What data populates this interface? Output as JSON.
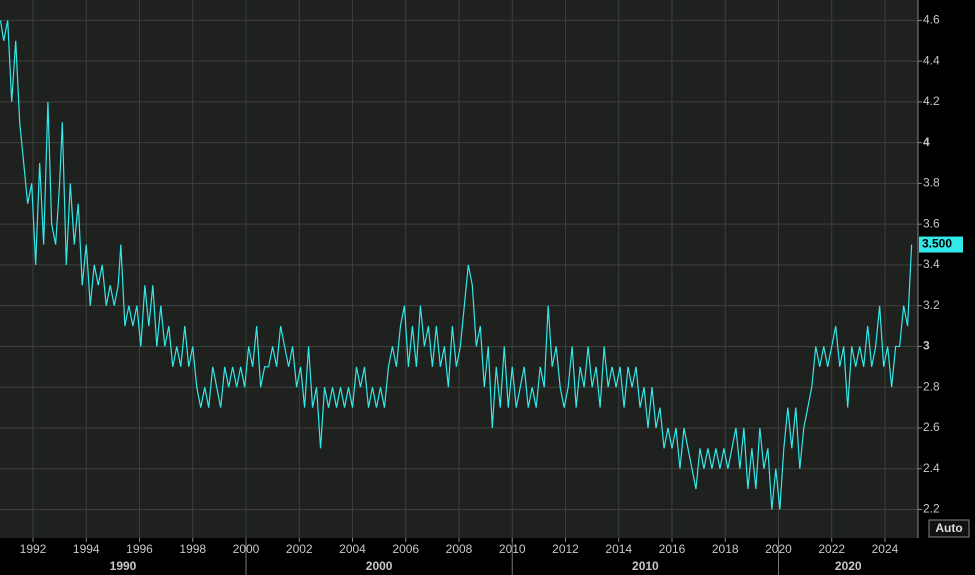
{
  "chart_data": {
    "type": "line",
    "x": [
      1990.78,
      1990.9,
      1991.05,
      1991.2,
      1991.35,
      1991.5,
      1991.65,
      1991.8,
      1991.95,
      1992.1,
      1992.25,
      1992.4,
      1992.56,
      1992.7,
      1992.85,
      1993.0,
      1993.1,
      1993.25,
      1993.4,
      1993.55,
      1993.7,
      1993.85,
      1994.0,
      1994.15,
      1994.3,
      1994.45,
      1994.6,
      1994.75,
      1994.9,
      1995.05,
      1995.2,
      1995.3,
      1995.45,
      1995.6,
      1995.75,
      1995.9,
      1996.05,
      1996.2,
      1996.35,
      1996.5,
      1996.65,
      1996.8,
      1996.95,
      1997.1,
      1997.25,
      1997.4,
      1997.55,
      1997.7,
      1997.85,
      1998.0,
      1998.15,
      1998.3,
      1998.45,
      1998.6,
      1998.75,
      1998.9,
      1999.05,
      1999.2,
      1999.35,
      1999.5,
      1999.65,
      1999.8,
      1999.95,
      2000.1,
      2000.25,
      2000.4,
      2000.55,
      2000.7,
      2000.85,
      2001.0,
      2001.15,
      2001.3,
      2001.45,
      2001.6,
      2001.75,
      2001.9,
      2002.05,
      2002.2,
      2002.35,
      2002.5,
      2002.65,
      2002.8,
      2002.95,
      2003.1,
      2003.25,
      2003.4,
      2003.55,
      2003.7,
      2003.85,
      2004.0,
      2004.15,
      2004.3,
      2004.45,
      2004.6,
      2004.75,
      2004.9,
      2005.05,
      2005.2,
      2005.35,
      2005.5,
      2005.65,
      2005.8,
      2005.95,
      2006.1,
      2006.25,
      2006.4,
      2006.55,
      2006.7,
      2006.85,
      2007.0,
      2007.15,
      2007.3,
      2007.45,
      2007.6,
      2007.75,
      2007.9,
      2008.05,
      2008.2,
      2008.35,
      2008.5,
      2008.65,
      2008.8,
      2008.95,
      2009.1,
      2009.25,
      2009.4,
      2009.55,
      2009.7,
      2009.85,
      2010.0,
      2010.15,
      2010.3,
      2010.45,
      2010.6,
      2010.75,
      2010.9,
      2011.05,
      2011.2,
      2011.35,
      2011.5,
      2011.65,
      2011.8,
      2011.95,
      2012.1,
      2012.25,
      2012.4,
      2012.55,
      2012.7,
      2012.85,
      2013.0,
      2013.15,
      2013.3,
      2013.45,
      2013.6,
      2013.75,
      2013.9,
      2014.05,
      2014.2,
      2014.35,
      2014.5,
      2014.65,
      2014.8,
      2014.95,
      2015.1,
      2015.25,
      2015.4,
      2015.55,
      2015.7,
      2015.85,
      2016.0,
      2016.15,
      2016.3,
      2016.45,
      2016.6,
      2016.75,
      2016.9,
      2017.05,
      2017.2,
      2017.35,
      2017.5,
      2017.65,
      2017.8,
      2017.95,
      2018.1,
      2018.25,
      2018.4,
      2018.55,
      2018.7,
      2018.85,
      2019.0,
      2019.15,
      2019.3,
      2019.45,
      2019.6,
      2019.75,
      2019.9,
      2020.05,
      2020.2,
      2020.35,
      2020.5,
      2020.65,
      2020.8,
      2020.95,
      2021.1,
      2021.25,
      2021.4,
      2021.55,
      2021.7,
      2021.85,
      2022.0,
      2022.15,
      2022.3,
      2022.45,
      2022.6,
      2022.75,
      2022.9,
      2023.05,
      2023.2,
      2023.35,
      2023.5,
      2023.65,
      2023.8,
      2023.95,
      2024.1,
      2024.25,
      2024.4,
      2024.55,
      2024.7,
      2024.85,
      2025.0
    ],
    "series": [
      {
        "color": "#33e8e8",
        "last_label": "3.500",
        "values": [
          4.6,
          4.5,
          4.6,
          4.2,
          4.5,
          4.1,
          3.9,
          3.7,
          3.8,
          3.4,
          3.9,
          3.5,
          4.2,
          3.6,
          3.5,
          3.8,
          4.1,
          3.4,
          3.8,
          3.5,
          3.7,
          3.3,
          3.5,
          3.2,
          3.4,
          3.3,
          3.4,
          3.2,
          3.3,
          3.2,
          3.3,
          3.5,
          3.1,
          3.2,
          3.1,
          3.2,
          3.0,
          3.3,
          3.1,
          3.3,
          3.0,
          3.2,
          3.0,
          3.1,
          2.9,
          3.0,
          2.9,
          3.1,
          2.9,
          3.0,
          2.8,
          2.7,
          2.8,
          2.7,
          2.9,
          2.8,
          2.7,
          2.9,
          2.8,
          2.9,
          2.8,
          2.9,
          2.8,
          3.0,
          2.9,
          3.1,
          2.8,
          2.9,
          2.9,
          3.0,
          2.9,
          3.1,
          3.0,
          2.9,
          3.0,
          2.8,
          2.9,
          2.7,
          3.0,
          2.7,
          2.8,
          2.5,
          2.8,
          2.7,
          2.8,
          2.7,
          2.8,
          2.7,
          2.8,
          2.7,
          2.9,
          2.8,
          2.9,
          2.7,
          2.8,
          2.7,
          2.8,
          2.7,
          2.9,
          3.0,
          2.9,
          3.1,
          3.2,
          2.9,
          3.1,
          2.9,
          3.2,
          3.0,
          3.1,
          2.9,
          3.1,
          2.9,
          3.0,
          2.8,
          3.1,
          2.9,
          3.0,
          3.2,
          3.4,
          3.3,
          3.0,
          3.1,
          2.8,
          3.0,
          2.6,
          2.9,
          2.7,
          3.0,
          2.7,
          2.9,
          2.7,
          2.8,
          2.9,
          2.7,
          2.8,
          2.7,
          2.9,
          2.8,
          3.2,
          2.9,
          3.0,
          2.8,
          2.7,
          2.8,
          3.0,
          2.7,
          2.9,
          2.8,
          3.0,
          2.8,
          2.9,
          2.7,
          3.0,
          2.8,
          2.9,
          2.8,
          2.9,
          2.7,
          2.9,
          2.8,
          2.9,
          2.7,
          2.8,
          2.6,
          2.8,
          2.6,
          2.7,
          2.5,
          2.6,
          2.5,
          2.6,
          2.4,
          2.6,
          2.5,
          2.4,
          2.3,
          2.5,
          2.4,
          2.5,
          2.4,
          2.5,
          2.4,
          2.5,
          2.4,
          2.5,
          2.6,
          2.4,
          2.6,
          2.3,
          2.5,
          2.3,
          2.6,
          2.4,
          2.5,
          2.2,
          2.4,
          2.2,
          2.5,
          2.7,
          2.5,
          2.7,
          2.4,
          2.6,
          2.7,
          2.8,
          3.0,
          2.9,
          3.0,
          2.9,
          3.0,
          3.1,
          2.9,
          3.0,
          2.7,
          3.0,
          2.9,
          3.0,
          2.9,
          3.1,
          2.9,
          3.0,
          3.2,
          2.9,
          3.0,
          2.8,
          3.0,
          3.0,
          3.2,
          3.1,
          3.5
        ]
      }
    ],
    "xlim": [
      1990.76,
      2025.24
    ],
    "xticks": [
      1992,
      1994,
      1996,
      1998,
      2000,
      2002,
      2004,
      2006,
      2008,
      2010,
      2012,
      2014,
      2016,
      2018,
      2020,
      2022,
      2024
    ],
    "xgroups": [
      {
        "value": 1990,
        "label": "1990"
      },
      {
        "value": 2000,
        "label": "2000"
      },
      {
        "value": 2010,
        "label": "2010"
      },
      {
        "value": 2020,
        "label": "2020"
      }
    ],
    "ylim": [
      2.06,
      4.7
    ],
    "yticks": [
      2.2,
      2.4,
      2.6,
      2.8,
      3,
      3.2,
      3.4,
      3.6,
      3.8,
      4,
      4.2,
      4.4,
      4.6
    ],
    "grid": true
  },
  "controls": {
    "auto": "Auto"
  }
}
